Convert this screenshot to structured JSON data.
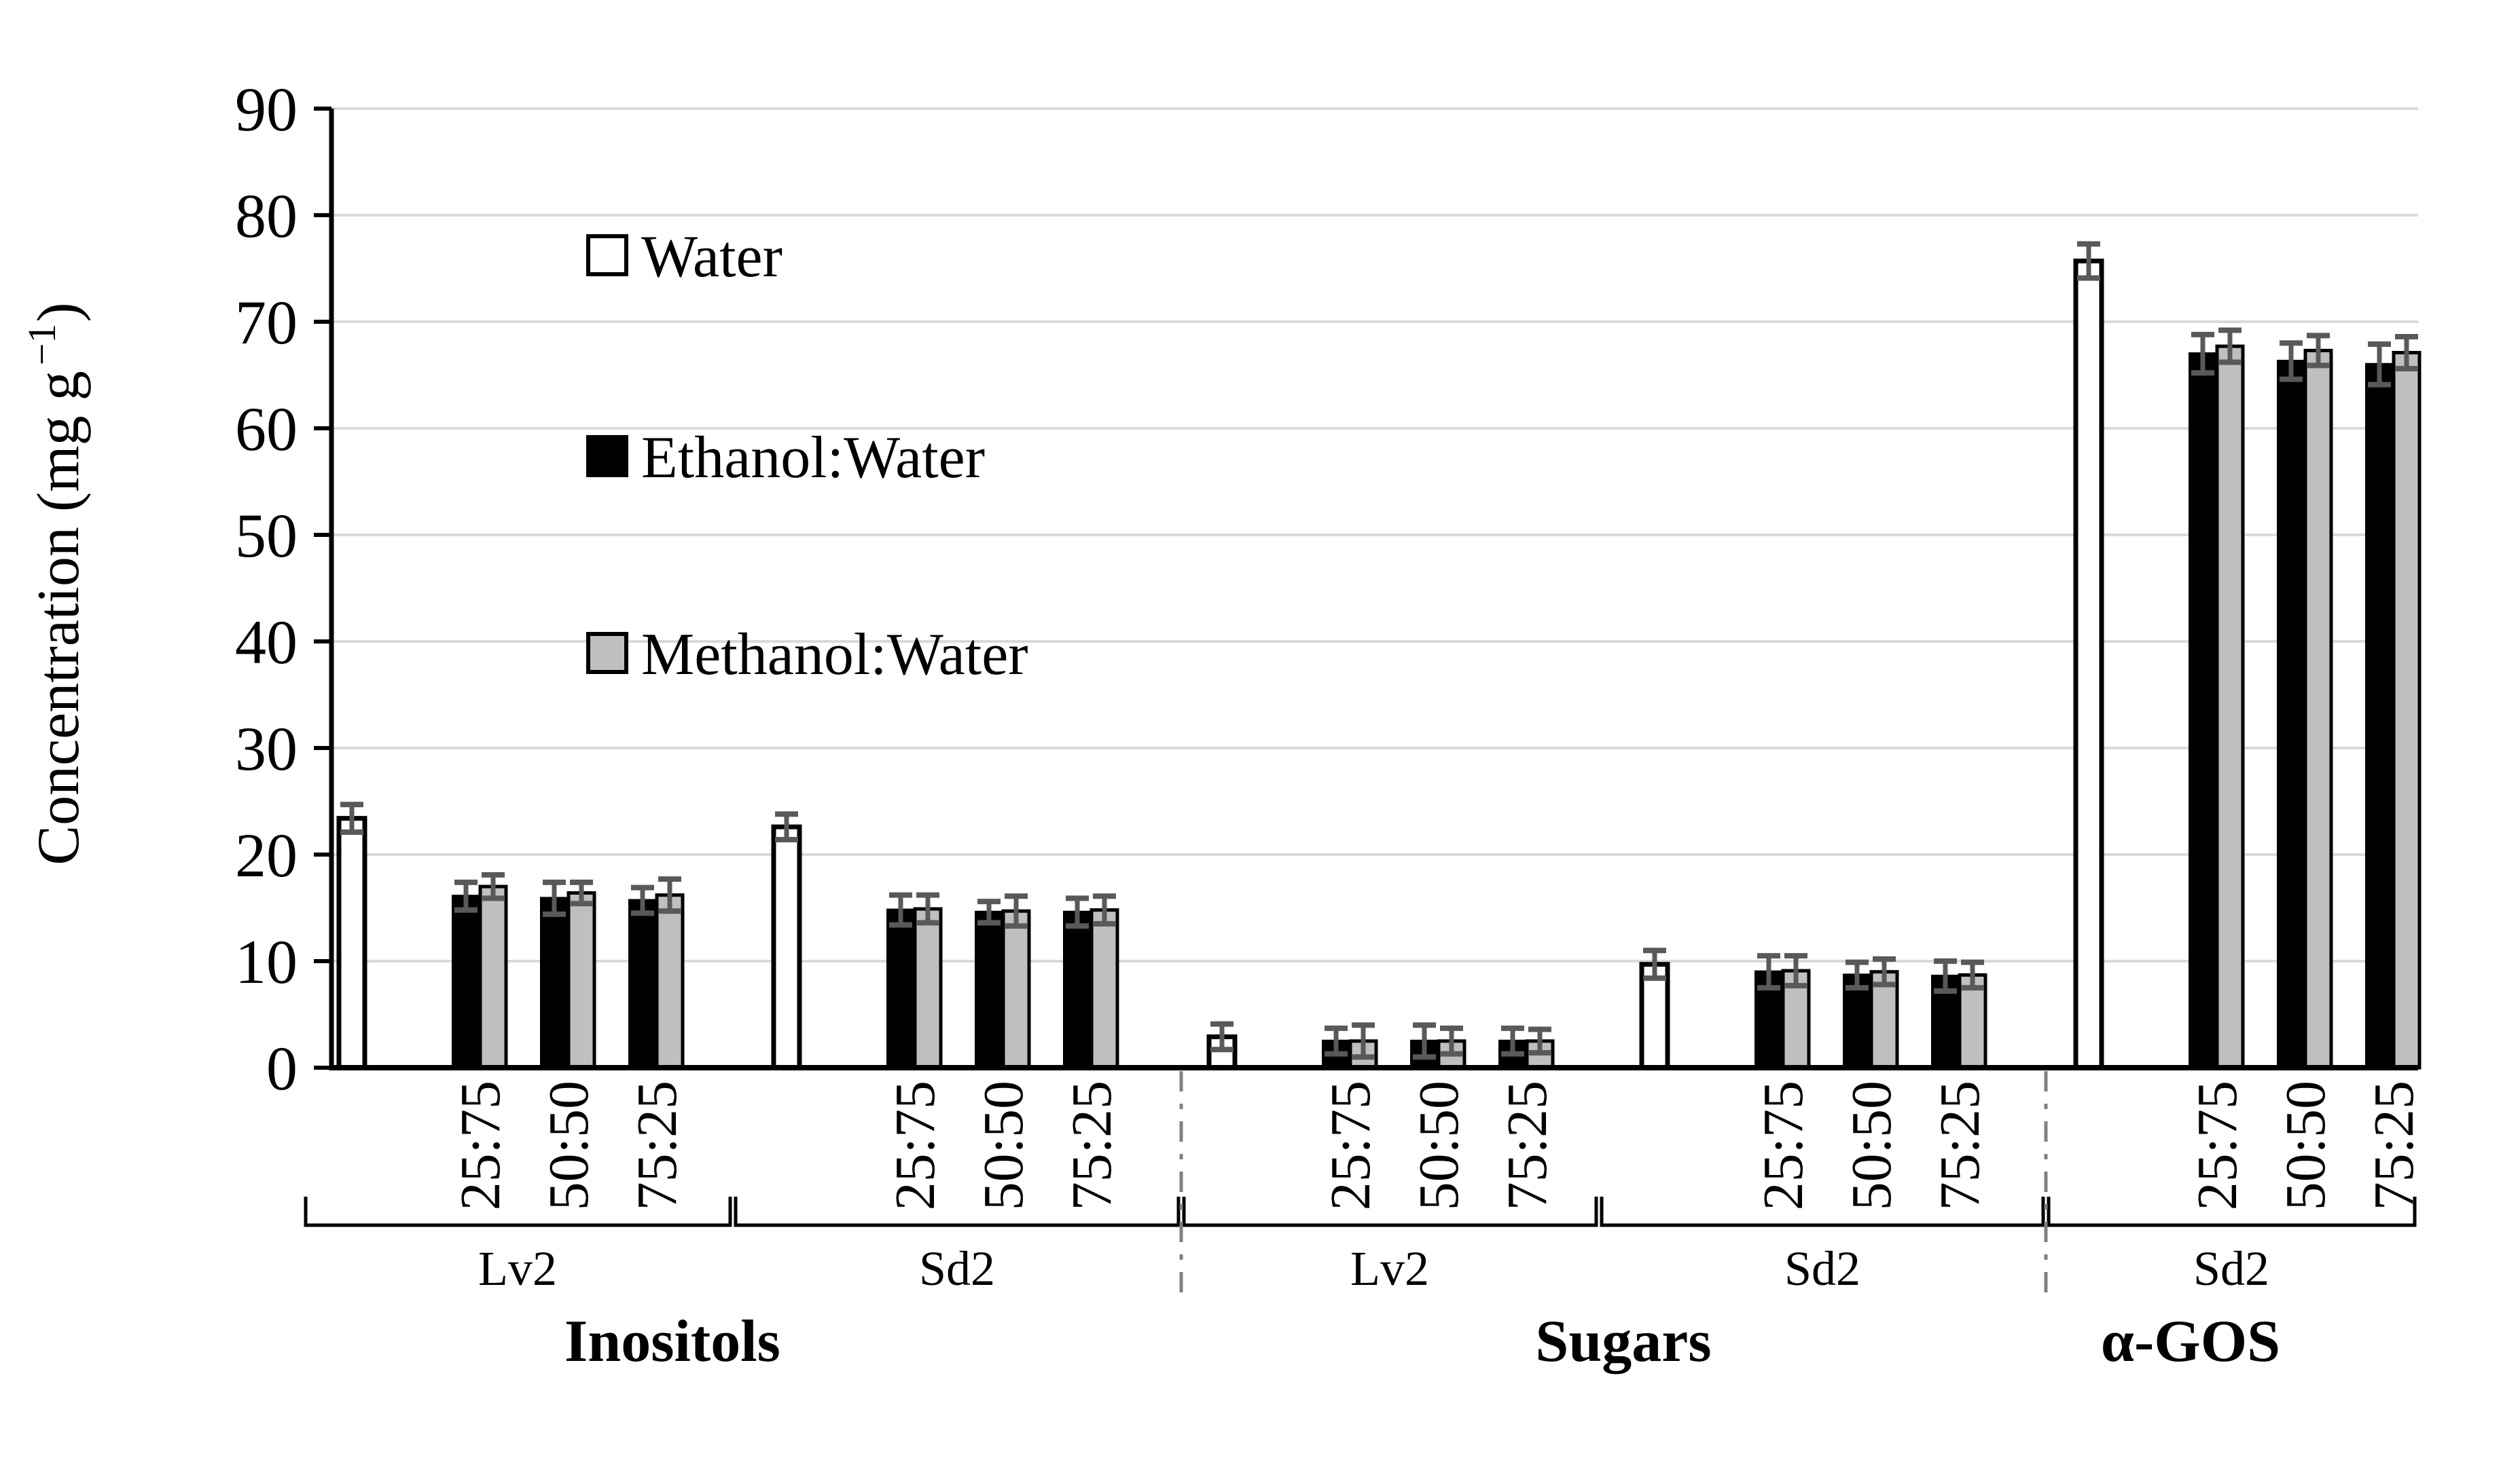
{
  "figure_type": "grouped-bar-chart-with-error-bars",
  "chart_data": {
    "type": "bar",
    "title": "",
    "xlabel": "",
    "ylabel": "Concentration (mg g−1)",
    "ylabel_parts": {
      "base": "Concentration (mg g",
      "sup": "−1",
      "close": ")"
    },
    "ylim": [
      0,
      90
    ],
    "ytick_step": 10,
    "yticks": [
      0,
      10,
      20,
      30,
      40,
      50,
      60,
      70,
      80,
      90
    ],
    "grid": true,
    "legend_position": "upper-left-inside",
    "legend": [
      {
        "label": "Water",
        "fill": "#ffffff",
        "outline": "#000000"
      },
      {
        "label": "Ethanol:Water",
        "fill": "#000000",
        "outline": "#000000"
      },
      {
        "label": "Methanol:Water",
        "fill": "#bfbfbf",
        "outline": "#000000"
      }
    ],
    "ratio_levels": [
      "25:75",
      "50:50",
      "75:25"
    ],
    "analyte_labels": [
      {
        "label": "Inositols"
      },
      {
        "label": "Sugars"
      },
      {
        "label": "α-GOS"
      }
    ],
    "groups": [
      {
        "analyte": "Inositols",
        "tissue": "Lv2",
        "bars": [
          {
            "series": "Water",
            "ratio": null,
            "value": 23.4,
            "error": 1.3
          },
          {
            "series": "Ethanol:Water",
            "ratio": "25:75",
            "value": 16.1,
            "error": 1.3
          },
          {
            "series": "Methanol:Water",
            "ratio": "25:75",
            "value": 17.0,
            "error": 1.1
          },
          {
            "series": "Ethanol:Water",
            "ratio": "50:50",
            "value": 15.9,
            "error": 1.5
          },
          {
            "series": "Methanol:Water",
            "ratio": "50:50",
            "value": 16.4,
            "error": 1.0
          },
          {
            "series": "Ethanol:Water",
            "ratio": "75:25",
            "value": 15.7,
            "error": 1.2
          },
          {
            "series": "Methanol:Water",
            "ratio": "75:25",
            "value": 16.2,
            "error": 1.5
          }
        ]
      },
      {
        "analyte": "Inositols",
        "tissue": "Sd2",
        "bars": [
          {
            "series": "Water",
            "ratio": null,
            "value": 22.6,
            "error": 1.2
          },
          {
            "series": "Ethanol:Water",
            "ratio": "25:75",
            "value": 14.8,
            "error": 1.4
          },
          {
            "series": "Methanol:Water",
            "ratio": "25:75",
            "value": 14.9,
            "error": 1.3
          },
          {
            "series": "Ethanol:Water",
            "ratio": "50:50",
            "value": 14.6,
            "error": 1.0
          },
          {
            "series": "Methanol:Water",
            "ratio": "50:50",
            "value": 14.7,
            "error": 1.4
          },
          {
            "series": "Ethanol:Water",
            "ratio": "75:25",
            "value": 14.6,
            "error": 1.3
          },
          {
            "series": "Methanol:Water",
            "ratio": "75:25",
            "value": 14.8,
            "error": 1.3
          }
        ]
      },
      {
        "analyte": "Sugars",
        "tissue": "Lv2",
        "bars": [
          {
            "series": "Water",
            "ratio": null,
            "value": 2.9,
            "error": 1.2
          },
          {
            "series": "Ethanol:Water",
            "ratio": "25:75",
            "value": 2.5,
            "error": 1.2
          },
          {
            "series": "Methanol:Water",
            "ratio": "25:75",
            "value": 2.5,
            "error": 1.5
          },
          {
            "series": "Ethanol:Water",
            "ratio": "50:50",
            "value": 2.5,
            "error": 1.5
          },
          {
            "series": "Methanol:Water",
            "ratio": "50:50",
            "value": 2.5,
            "error": 1.2
          },
          {
            "series": "Ethanol:Water",
            "ratio": "75:25",
            "value": 2.5,
            "error": 1.2
          },
          {
            "series": "Methanol:Water",
            "ratio": "75:25",
            "value": 2.5,
            "error": 1.1
          }
        ]
      },
      {
        "analyte": "Sugars",
        "tissue": "Sd2",
        "bars": [
          {
            "series": "Water",
            "ratio": null,
            "value": 9.7,
            "error": 1.3
          },
          {
            "series": "Ethanol:Water",
            "ratio": "25:75",
            "value": 9.0,
            "error": 1.5
          },
          {
            "series": "Methanol:Water",
            "ratio": "25:75",
            "value": 9.1,
            "error": 1.4
          },
          {
            "series": "Ethanol:Water",
            "ratio": "50:50",
            "value": 8.7,
            "error": 1.2
          },
          {
            "series": "Methanol:Water",
            "ratio": "50:50",
            "value": 9.0,
            "error": 1.2
          },
          {
            "series": "Ethanol:Water",
            "ratio": "75:25",
            "value": 8.6,
            "error": 1.4
          },
          {
            "series": "Methanol:Water",
            "ratio": "75:25",
            "value": 8.7,
            "error": 1.2
          }
        ]
      },
      {
        "analyte": "α-GOS",
        "tissue": "Sd2",
        "bars": [
          {
            "series": "Water",
            "ratio": null,
            "value": 75.7,
            "error": 1.6
          },
          {
            "series": "Ethanol:Water",
            "ratio": "25:75",
            "value": 67.0,
            "error": 1.8
          },
          {
            "series": "Methanol:Water",
            "ratio": "25:75",
            "value": 67.7,
            "error": 1.5
          },
          {
            "series": "Ethanol:Water",
            "ratio": "50:50",
            "value": 66.3,
            "error": 1.7
          },
          {
            "series": "Methanol:Water",
            "ratio": "50:50",
            "value": 67.3,
            "error": 1.4
          },
          {
            "series": "Ethanol:Water",
            "ratio": "75:25",
            "value": 66.0,
            "error": 1.9
          },
          {
            "series": "Methanol:Water",
            "ratio": "75:25",
            "value": 67.1,
            "error": 1.5
          }
        ]
      }
    ],
    "colors": {
      "water_fill": "#ffffff",
      "ethanol_fill": "#000000",
      "methanol_fill": "#bfbfbf",
      "error_bar": "#595959",
      "gridline": "#d9d9d9",
      "separator": "#808080",
      "axis": "#000000"
    }
  }
}
